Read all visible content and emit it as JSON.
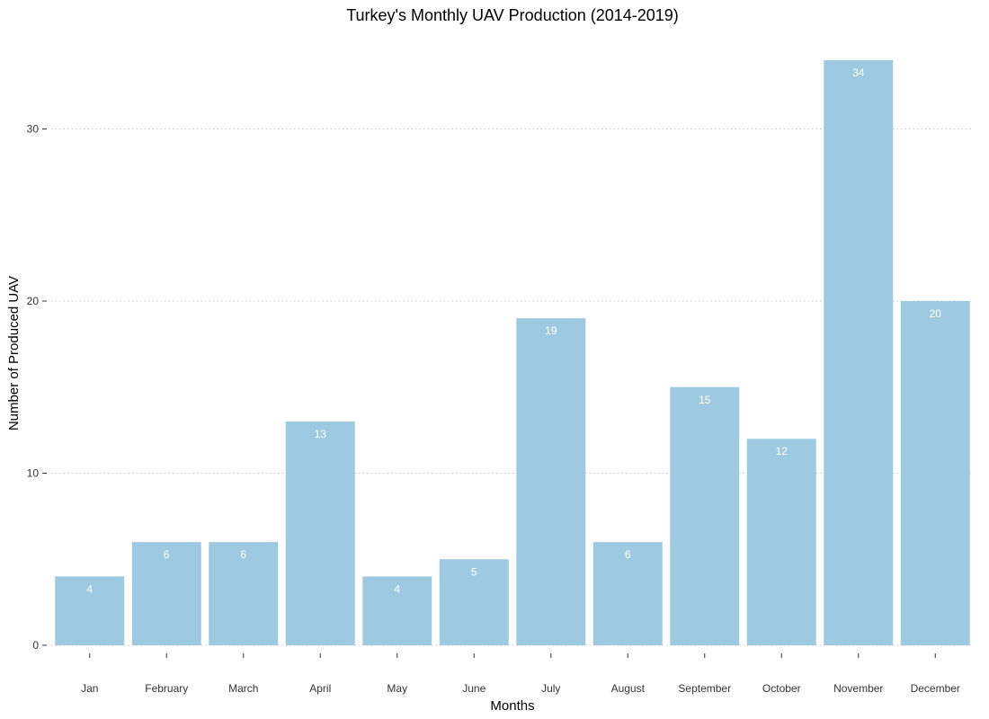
{
  "chart_data": {
    "type": "bar",
    "title": "Turkey's Monthly UAV Production (2014-2019)",
    "xlabel": "Months",
    "ylabel": "Number of Produced UAV",
    "categories": [
      "Jan",
      "February",
      "March",
      "April",
      "May",
      "June",
      "July",
      "August",
      "September",
      "October",
      "November",
      "December"
    ],
    "values": [
      4,
      6,
      6,
      13,
      4,
      5,
      19,
      6,
      15,
      12,
      34,
      20
    ],
    "yticks": [
      0,
      10,
      20,
      30
    ],
    "ylim": [
      0,
      34
    ],
    "grid": true,
    "legend": "none",
    "bar_color": "#9ECAE1",
    "label_color": "#ffffff"
  }
}
